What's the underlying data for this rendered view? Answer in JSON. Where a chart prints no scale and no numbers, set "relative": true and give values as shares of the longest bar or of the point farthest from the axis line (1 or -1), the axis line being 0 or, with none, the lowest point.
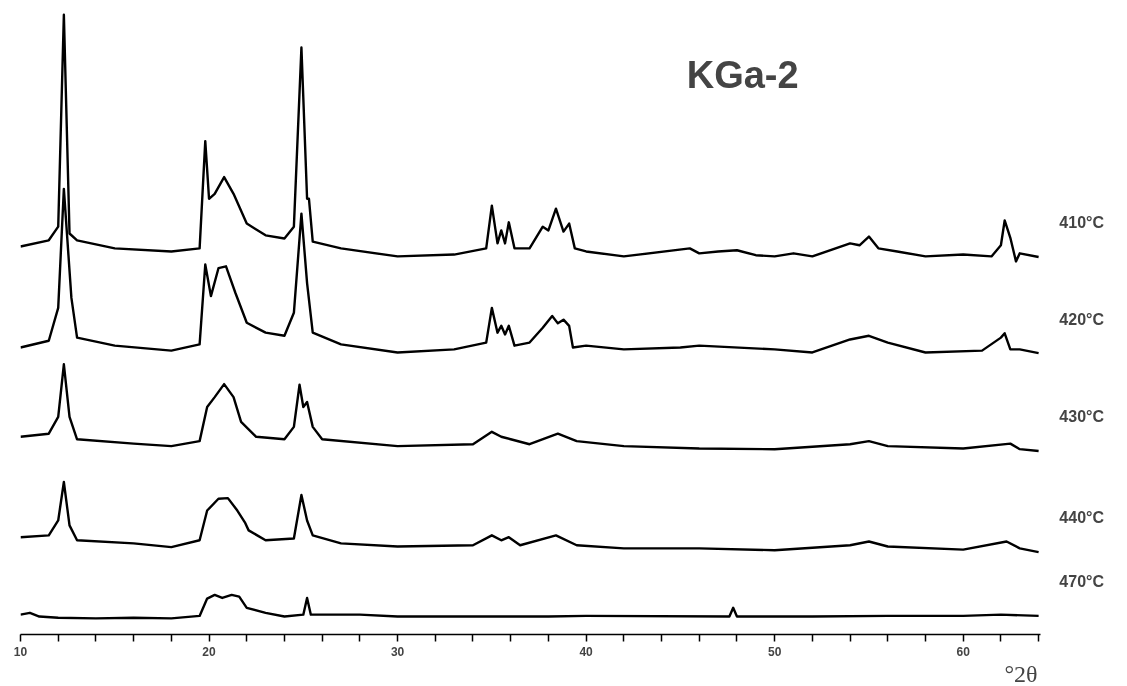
{
  "chart_data": {
    "type": "line",
    "title": "KGa-2",
    "xlabel": "°2θ",
    "relative": true,
    "tick_labels": "x",
    "xlim": [
      10,
      64.1
    ],
    "xticks": [
      10,
      {
        "value": 12,
        "label": null
      },
      {
        "value": 14,
        "label": null
      },
      {
        "value": 16,
        "label": null
      },
      {
        "value": 18,
        "label": null
      },
      20,
      {
        "value": 22,
        "label": null
      },
      {
        "value": 24,
        "label": null
      },
      {
        "value": 26,
        "label": null
      },
      {
        "value": 28,
        "label": null
      },
      30,
      {
        "value": 32,
        "label": null
      },
      {
        "value": 34,
        "label": null
      },
      {
        "value": 36,
        "label": null
      },
      {
        "value": 38,
        "label": null
      },
      40,
      {
        "value": 42,
        "label": null
      },
      {
        "value": 44,
        "label": null
      },
      {
        "value": 46,
        "label": null
      },
      {
        "value": 48,
        "label": null
      },
      50,
      {
        "value": 52,
        "label": null
      },
      {
        "value": 54,
        "label": null
      },
      {
        "value": 56,
        "label": null
      },
      {
        "value": 58,
        "label": null
      },
      60,
      {
        "value": 62,
        "label": null
      },
      {
        "value": 64,
        "label": null
      }
    ],
    "series": [
      {
        "name": "410°C",
        "color": "#000000",
        "x": [
          10,
          11.5,
          12.0,
          12.3,
          12.6,
          13,
          15,
          18,
          19.5,
          19.8,
          20.0,
          20.3,
          20.8,
          21.3,
          22,
          23,
          24,
          24.5,
          24.9,
          25.2,
          25.3,
          25.5,
          27,
          30,
          33,
          34.7,
          35.0,
          35.3,
          35.5,
          35.7,
          35.9,
          36.2,
          37,
          37.7,
          38.0,
          38.4,
          38.8,
          39.1,
          39.4,
          40,
          42,
          45.5,
          46,
          47,
          48,
          49,
          50,
          51,
          52,
          54,
          54.5,
          55,
          55.5,
          56.5,
          58,
          60,
          61.5,
          62,
          62.2,
          62.5,
          62.8,
          63,
          64
        ],
        "values": [
          0.626,
          0.636,
          0.658,
          1,
          0.647,
          0.636,
          0.623,
          0.618,
          0.623,
          0.796,
          0.703,
          0.711,
          0.738,
          0.711,
          0.663,
          0.644,
          0.639,
          0.658,
          0.947,
          0.703,
          0.703,
          0.634,
          0.623,
          0.61,
          0.613,
          0.623,
          0.692,
          0.631,
          0.652,
          0.631,
          0.665,
          0.623,
          0.623,
          0.658,
          0.652,
          0.687,
          0.65,
          0.663,
          0.623,
          0.618,
          0.61,
          0.623,
          0.615,
          0.618,
          0.62,
          0.612,
          0.61,
          0.615,
          0.61,
          0.631,
          0.628,
          0.642,
          0.623,
          0.618,
          0.61,
          0.613,
          0.61,
          0.628,
          0.668,
          0.64,
          0.602,
          0.615,
          0.609
        ]
      },
      {
        "name": "420°C",
        "color": "#000000",
        "x": [
          10,
          11.5,
          12.0,
          12.3,
          12.7,
          13,
          15,
          18,
          19.5,
          19.8,
          20.1,
          20.5,
          20.9,
          21.4,
          22,
          23,
          24,
          24.5,
          24.9,
          25.2,
          25.5,
          27,
          30,
          33,
          34.7,
          35.0,
          35.3,
          35.5,
          35.7,
          35.9,
          36.2,
          37,
          37.7,
          38.2,
          38.5,
          38.8,
          39.1,
          39.3,
          40,
          42,
          45,
          46,
          50,
          52,
          54,
          55,
          56,
          58,
          61,
          62,
          62.2,
          62.5,
          63,
          64
        ],
        "values": [
          0.463,
          0.474,
          0.527,
          0.719,
          0.543,
          0.479,
          0.466,
          0.458,
          0.468,
          0.597,
          0.546,
          0.591,
          0.594,
          0.551,
          0.503,
          0.487,
          0.482,
          0.519,
          0.679,
          0.567,
          0.487,
          0.468,
          0.455,
          0.46,
          0.471,
          0.527,
          0.487,
          0.498,
          0.484,
          0.498,
          0.466,
          0.471,
          0.495,
          0.514,
          0.502,
          0.508,
          0.498,
          0.463,
          0.466,
          0.46,
          0.463,
          0.466,
          0.46,
          0.455,
          0.476,
          0.482,
          0.471,
          0.455,
          0.458,
          0.479,
          0.486,
          0.46,
          0.46,
          0.454
        ]
      },
      {
        "name": "430°C",
        "color": "#000000",
        "x": [
          10,
          11.5,
          12.0,
          12.3,
          12.6,
          13,
          16,
          18,
          19.5,
          19.9,
          20.3,
          20.8,
          21.3,
          21.7,
          22.5,
          24,
          24.5,
          24.8,
          25.0,
          25.2,
          25.5,
          26,
          30,
          34,
          35.0,
          35.5,
          36,
          37,
          38.5,
          39.5,
          42,
          46,
          50,
          54,
          55,
          56,
          60,
          62.5,
          63,
          64
        ],
        "values": [
          0.319,
          0.324,
          0.351,
          0.436,
          0.351,
          0.315,
          0.308,
          0.304,
          0.312,
          0.367,
          0.383,
          0.404,
          0.383,
          0.343,
          0.319,
          0.315,
          0.335,
          0.403,
          0.367,
          0.375,
          0.335,
          0.315,
          0.304,
          0.307,
          0.327,
          0.319,
          0.315,
          0.307,
          0.324,
          0.312,
          0.304,
          0.3,
          0.299,
          0.307,
          0.312,
          0.304,
          0.3,
          0.308,
          0.299,
          0.296
        ]
      },
      {
        "name": "440°C",
        "color": "#000000",
        "x": [
          10,
          11.5,
          12.0,
          12.3,
          12.6,
          13,
          16,
          18,
          19.5,
          19.9,
          20.5,
          21.0,
          21.5,
          21.9,
          22.1,
          23,
          24.5,
          24.9,
          25.2,
          25.5,
          27,
          30,
          34,
          35.0,
          35.5,
          35.9,
          36.5,
          38.4,
          39.5,
          42,
          46,
          50,
          54,
          55,
          56,
          60,
          62.3,
          63,
          64
        ],
        "values": [
          0.157,
          0.16,
          0.184,
          0.246,
          0.176,
          0.152,
          0.147,
          0.141,
          0.152,
          0.2,
          0.219,
          0.22,
          0.2,
          0.181,
          0.168,
          0.152,
          0.155,
          0.225,
          0.184,
          0.16,
          0.147,
          0.142,
          0.144,
          0.16,
          0.152,
          0.157,
          0.144,
          0.16,
          0.144,
          0.139,
          0.139,
          0.136,
          0.144,
          0.15,
          0.142,
          0.137,
          0.15,
          0.139,
          0.133
        ]
      },
      {
        "name": "470°C",
        "color": "#000000",
        "x": [
          10,
          10.5,
          11,
          12,
          14,
          16,
          18,
          19.5,
          19.9,
          20.3,
          20.7,
          21.2,
          21.6,
          22,
          23,
          24,
          25.0,
          25.2,
          25.4,
          26,
          28,
          30,
          35,
          38,
          40,
          47.6,
          47.8,
          48,
          52,
          56,
          60,
          62,
          64
        ],
        "values": [
          0.032,
          0.035,
          0.029,
          0.027,
          0.026,
          0.027,
          0.026,
          0.03,
          0.058,
          0.064,
          0.059,
          0.064,
          0.061,
          0.043,
          0.035,
          0.029,
          0.032,
          0.059,
          0.032,
          0.032,
          0.032,
          0.029,
          0.029,
          0.029,
          0.03,
          0.029,
          0.043,
          0.029,
          0.029,
          0.03,
          0.03,
          0.032,
          0.03
        ]
      }
    ]
  }
}
